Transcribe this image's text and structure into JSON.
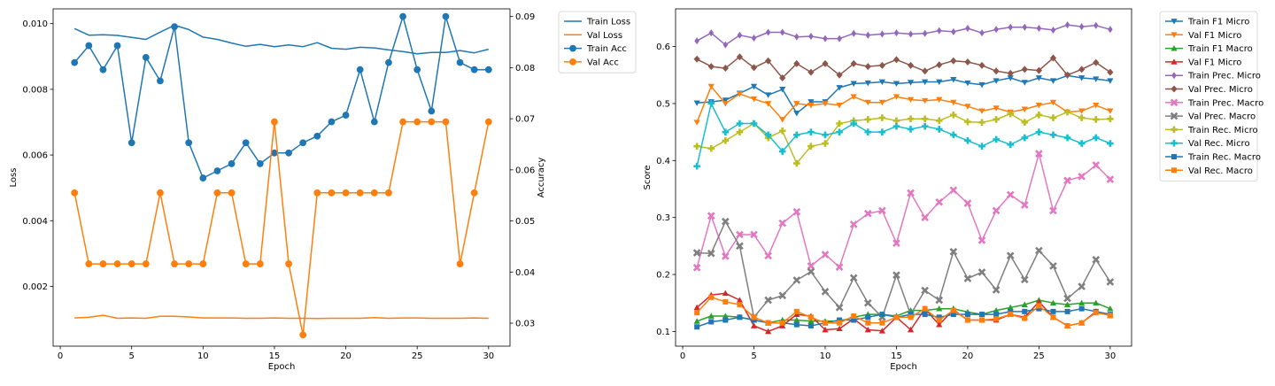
{
  "chart_data": [
    {
      "type": "line",
      "xlabel": "Epoch",
      "ylabel_left": "Loss",
      "ylabel_right": "Accuracy",
      "xlim": [
        -0.5,
        31.5
      ],
      "ylim_left": [
        0.00018,
        0.01045
      ],
      "ylim_right": [
        0.0255,
        0.0915
      ],
      "x_ticks": [
        0,
        5,
        10,
        15,
        20,
        25,
        30
      ],
      "y_ticks_left": [
        "0.002",
        "0.004",
        "0.006",
        "0.008",
        "0.010"
      ],
      "y_ticks_right": [
        "0.03",
        "0.04",
        "0.05",
        "0.06",
        "0.07",
        "0.08",
        "0.09"
      ],
      "legend_position": "outside-top-right",
      "x": [
        1,
        2,
        3,
        4,
        5,
        6,
        7,
        8,
        9,
        10,
        11,
        12,
        13,
        14,
        15,
        16,
        17,
        18,
        19,
        20,
        21,
        22,
        23,
        24,
        25,
        26,
        27,
        28,
        29,
        30
      ],
      "series": [
        {
          "name": "Train Loss",
          "axis": "left",
          "marker": "none",
          "color": "#1f77b4",
          "values": [
            0.00985,
            0.00965,
            0.00966,
            0.00964,
            0.00958,
            0.00952,
            0.00974,
            0.00995,
            0.00982,
            0.00959,
            0.00952,
            0.00941,
            0.00931,
            0.00937,
            0.0093,
            0.00935,
            0.0093,
            0.00942,
            0.00925,
            0.00922,
            0.00928,
            0.00926,
            0.0092,
            0.00915,
            0.00908,
            0.00912,
            0.00912,
            0.00918,
            0.00911,
            0.00922
          ]
        },
        {
          "name": "Val Loss",
          "axis": "left",
          "marker": "none",
          "color": "#ff7f0e",
          "values": [
            0.00104,
            0.00106,
            0.00112,
            0.00103,
            0.00104,
            0.00103,
            0.00109,
            0.00109,
            0.00107,
            0.00104,
            0.00104,
            0.00104,
            0.00103,
            0.00103,
            0.00104,
            0.00103,
            0.00103,
            0.00102,
            0.00103,
            0.00103,
            0.00103,
            0.00105,
            0.00103,
            0.00104,
            0.00104,
            0.00103,
            0.00103,
            0.00103,
            0.00104,
            0.00103
          ]
        },
        {
          "name": "Train Acc",
          "axis": "right",
          "marker": "circle",
          "color": "#1f77b4",
          "values": [
            0.081,
            0.0843,
            0.0796,
            0.0843,
            0.0653,
            0.082,
            0.0774,
            0.088,
            0.0653,
            0.0584,
            0.0598,
            0.0612,
            0.0653,
            0.0612,
            0.0633,
            0.0633,
            0.0653,
            0.0666,
            0.0694,
            0.0707,
            0.0796,
            0.0694,
            0.081,
            0.09,
            0.0796,
            0.0715,
            0.09,
            0.081,
            0.0796,
            0.0796
          ]
        },
        {
          "name": "Val Acc",
          "axis": "right",
          "marker": "circle",
          "color": "#ff7f0e",
          "values": [
            0.0555,
            0.0416,
            0.0416,
            0.0416,
            0.0416,
            0.0416,
            0.0555,
            0.0416,
            0.0416,
            0.0416,
            0.0555,
            0.0555,
            0.0416,
            0.0416,
            0.0694,
            0.0416,
            0.0277,
            0.0555,
            0.0555,
            0.0555,
            0.0555,
            0.0555,
            0.0555,
            0.0694,
            0.0694,
            0.0694,
            0.0694,
            0.0416,
            0.0555,
            0.0694
          ]
        }
      ]
    },
    {
      "type": "line",
      "xlabel": "Epoch",
      "ylabel": "Score",
      "xlim": [
        -0.5,
        31.5
      ],
      "ylim": [
        0.0742,
        0.6662
      ],
      "x_ticks": [
        0,
        5,
        10,
        15,
        20,
        25,
        30
      ],
      "y_ticks": [
        "0.1",
        "0.2",
        "0.3",
        "0.4",
        "0.5",
        "0.6"
      ],
      "legend_position": "outside-top-right",
      "x": [
        1,
        2,
        3,
        4,
        5,
        6,
        7,
        8,
        9,
        10,
        11,
        12,
        13,
        14,
        15,
        16,
        17,
        18,
        19,
        20,
        21,
        22,
        23,
        24,
        25,
        26,
        27,
        28,
        29,
        30
      ],
      "series": [
        {
          "name": "Train F1 Micro",
          "marker": "tri-down",
          "color": "#1f77b4",
          "values": [
            0.501,
            0.503,
            0.506,
            0.518,
            0.53,
            0.515,
            0.525,
            0.483,
            0.503,
            0.503,
            0.528,
            0.535,
            0.536,
            0.538,
            0.535,
            0.537,
            0.538,
            0.538,
            0.542,
            0.536,
            0.533,
            0.54,
            0.545,
            0.537,
            0.545,
            0.54,
            0.549,
            0.545,
            0.543,
            0.54
          ]
        },
        {
          "name": "Val F1 Micro",
          "marker": "tri-down",
          "color": "#ff7f0e",
          "values": [
            0.467,
            0.53,
            0.5,
            0.517,
            0.508,
            0.5,
            0.472,
            0.5,
            0.497,
            0.5,
            0.497,
            0.512,
            0.502,
            0.502,
            0.512,
            0.507,
            0.505,
            0.507,
            0.502,
            0.495,
            0.487,
            0.492,
            0.485,
            0.49,
            0.497,
            0.502,
            0.485,
            0.487,
            0.497,
            0.487
          ]
        },
        {
          "name": "Train F1 Macro",
          "marker": "tri-up",
          "color": "#2ca02c",
          "values": [
            0.118,
            0.127,
            0.127,
            0.125,
            0.12,
            0.115,
            0.12,
            0.12,
            0.118,
            0.118,
            0.118,
            0.125,
            0.13,
            0.13,
            0.127,
            0.137,
            0.137,
            0.14,
            0.14,
            0.134,
            0.13,
            0.137,
            0.142,
            0.147,
            0.155,
            0.15,
            0.147,
            0.15,
            0.15,
            0.14
          ]
        },
        {
          "name": "Val F1 Micro",
          "marker": "tri-up",
          "color": "#d62728",
          "values": [
            0.142,
            0.164,
            0.167,
            0.155,
            0.11,
            0.1,
            0.11,
            0.13,
            0.127,
            0.103,
            0.105,
            0.122,
            0.103,
            0.101,
            0.125,
            0.103,
            0.14,
            0.112,
            0.138,
            0.12,
            0.12,
            0.12,
            0.13,
            0.125,
            0.152,
            0.125,
            0.11,
            0.115,
            0.135,
            0.128
          ]
        },
        {
          "name": "Train Prec. Micro",
          "marker": "diamond-thin",
          "color": "#9467bd",
          "values": [
            0.61,
            0.624,
            0.603,
            0.62,
            0.615,
            0.625,
            0.625,
            0.617,
            0.618,
            0.614,
            0.614,
            0.623,
            0.62,
            0.622,
            0.624,
            0.622,
            0.623,
            0.628,
            0.626,
            0.632,
            0.624,
            0.63,
            0.634,
            0.634,
            0.632,
            0.629,
            0.638,
            0.635,
            0.637,
            0.63
          ]
        },
        {
          "name": "Val Prec. Micro",
          "marker": "diamond",
          "color": "#8c564b",
          "values": [
            0.578,
            0.565,
            0.562,
            0.582,
            0.563,
            0.575,
            0.545,
            0.57,
            0.555,
            0.57,
            0.55,
            0.57,
            0.565,
            0.567,
            0.577,
            0.567,
            0.557,
            0.568,
            0.575,
            0.573,
            0.567,
            0.557,
            0.553,
            0.56,
            0.558,
            0.58,
            0.55,
            0.56,
            0.572,
            0.555
          ]
        },
        {
          "name": "Train Prec. Macro",
          "marker": "x",
          "color": "#e377c2",
          "values": [
            0.212,
            0.303,
            0.232,
            0.27,
            0.27,
            0.233,
            0.29,
            0.31,
            0.215,
            0.235,
            0.213,
            0.288,
            0.307,
            0.312,
            0.255,
            0.343,
            0.3,
            0.327,
            0.348,
            0.325,
            0.26,
            0.312,
            0.34,
            0.322,
            0.412,
            0.312,
            0.365,
            0.372,
            0.392,
            0.367
          ]
        },
        {
          "name": "Val Prec. Macro",
          "marker": "x",
          "color": "#7f7f7f",
          "values": [
            0.238,
            0.237,
            0.293,
            0.25,
            0.125,
            0.155,
            0.163,
            0.19,
            0.205,
            0.17,
            0.142,
            0.194,
            0.15,
            0.125,
            0.199,
            0.13,
            0.172,
            0.155,
            0.24,
            0.193,
            0.204,
            0.173,
            0.233,
            0.191,
            0.242,
            0.215,
            0.158,
            0.179,
            0.226,
            0.187
          ]
        },
        {
          "name": "Train Rec. Micro",
          "marker": "plus",
          "color": "#bcbd22",
          "values": [
            0.425,
            0.421,
            0.435,
            0.45,
            0.465,
            0.44,
            0.452,
            0.395,
            0.425,
            0.43,
            0.465,
            0.47,
            0.472,
            0.475,
            0.47,
            0.473,
            0.473,
            0.47,
            0.48,
            0.468,
            0.467,
            0.472,
            0.482,
            0.467,
            0.48,
            0.475,
            0.485,
            0.475,
            0.472,
            0.473
          ]
        },
        {
          "name": "Val Rec. Micro",
          "marker": "plus",
          "color": "#17becf",
          "values": [
            0.39,
            0.5,
            0.45,
            0.465,
            0.465,
            0.445,
            0.416,
            0.445,
            0.45,
            0.445,
            0.45,
            0.465,
            0.45,
            0.45,
            0.46,
            0.455,
            0.46,
            0.455,
            0.445,
            0.435,
            0.425,
            0.437,
            0.428,
            0.44,
            0.45,
            0.445,
            0.44,
            0.43,
            0.44,
            0.43
          ]
        },
        {
          "name": "Train Rec. Macro",
          "marker": "square",
          "color": "#1f77b4",
          "values": [
            0.108,
            0.117,
            0.12,
            0.125,
            0.12,
            0.115,
            0.115,
            0.112,
            0.11,
            0.115,
            0.12,
            0.12,
            0.125,
            0.13,
            0.125,
            0.13,
            0.13,
            0.125,
            0.13,
            0.13,
            0.13,
            0.13,
            0.135,
            0.135,
            0.14,
            0.135,
            0.135,
            0.14,
            0.135,
            0.13
          ]
        },
        {
          "name": "Val Rec. Macro",
          "marker": "square",
          "color": "#ff7f0e",
          "values": [
            0.133,
            0.16,
            0.152,
            0.147,
            0.125,
            0.115,
            0.115,
            0.135,
            0.125,
            0.115,
            0.115,
            0.127,
            0.115,
            0.115,
            0.125,
            0.125,
            0.14,
            0.12,
            0.137,
            0.12,
            0.12,
            0.122,
            0.13,
            0.123,
            0.145,
            0.125,
            0.11,
            0.115,
            0.133,
            0.128
          ]
        }
      ]
    }
  ]
}
